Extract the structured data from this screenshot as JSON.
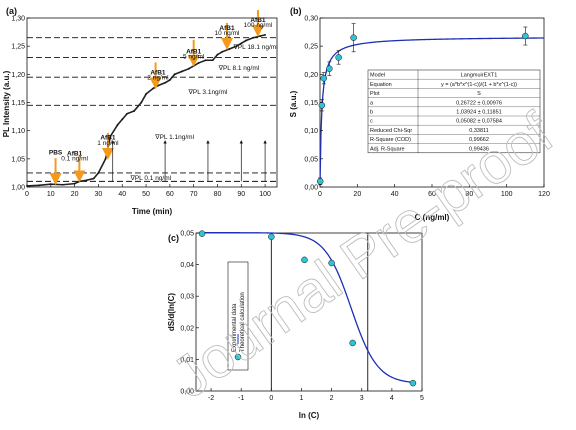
{
  "watermark": "Journal Pre-proof",
  "colors": {
    "marker_fill": "#2ec4d6",
    "fit_line": "#1f2fb5",
    "arrow": "#f39a1d",
    "data_line": "#222222"
  },
  "chart_data": [
    {
      "panel": "(a)",
      "type": "line",
      "xlabel": "Time (min)",
      "ylabel": "PL Intensity (a.u.)",
      "xlim": [
        0,
        105
      ],
      "ylim": [
        1.0,
        1.3
      ],
      "xticks": [
        "0",
        "10",
        "20",
        "30",
        "40",
        "50",
        "60",
        "70",
        "80",
        "90",
        "100"
      ],
      "yticks": [
        "1,00",
        "1,05",
        "1,10",
        "1,15",
        "1,20",
        "1,25",
        "1,30"
      ],
      "series": [
        {
          "x": [
            0,
            5,
            10,
            15,
            20,
            22,
            25,
            28,
            30,
            33,
            35,
            38,
            40,
            42,
            45,
            48,
            50,
            53,
            55,
            58,
            60,
            62,
            65,
            68,
            70,
            72,
            75,
            78,
            80,
            82,
            85,
            88,
            90,
            92,
            95,
            98,
            100
          ],
          "y": [
            1.002,
            1.003,
            1.005,
            1.004,
            1.006,
            1.01,
            1.012,
            1.015,
            1.025,
            1.05,
            1.09,
            1.11,
            1.12,
            1.13,
            1.135,
            1.15,
            1.165,
            1.175,
            1.18,
            1.185,
            1.19,
            1.2,
            1.205,
            1.21,
            1.215,
            1.22,
            1.225,
            1.225,
            1.235,
            1.24,
            1.245,
            1.25,
            1.255,
            1.26,
            1.265,
            1.268,
            1.27
          ]
        }
      ],
      "dashed_levels": [
        1.01,
        1.025,
        1.145,
        1.195,
        1.23,
        1.265
      ],
      "arrows_x": [
        12,
        22,
        34,
        54,
        70,
        84,
        97
      ],
      "vertical_arrows_x": [
        36,
        58,
        76,
        90,
        100
      ],
      "annotations": [
        {
          "label": "PBS",
          "x": 12,
          "y": 1.058
        },
        {
          "label": "AfB1",
          "x": 20,
          "y": 1.056
        },
        {
          "label": "0.1 ng/ml",
          "x": 20,
          "y": 1.047
        },
        {
          "label": "AfB1",
          "x": 34,
          "y": 1.084
        },
        {
          "label": "1 ng/ml",
          "x": 34,
          "y": 1.075
        },
        {
          "label": "AfB1",
          "x": 55,
          "y": 1.2
        },
        {
          "label": "2 ng/ml",
          "x": 55,
          "y": 1.191
        },
        {
          "label": "AfB1",
          "x": 70,
          "y": 1.237
        },
        {
          "label": "5 ng/ml",
          "x": 70,
          "y": 1.228
        },
        {
          "label": "AfB1",
          "x": 84,
          "y": 1.279
        },
        {
          "label": "10 ng/ml",
          "x": 84,
          "y": 1.27
        },
        {
          "label": "AfB1",
          "x": 97,
          "y": 1.293
        },
        {
          "label": "100 ng/ml",
          "x": 97,
          "y": 1.284
        },
        {
          "label": "∇PL  0.1 ng/ml",
          "x": 52,
          "y": 1.012
        },
        {
          "label": "∇PL 1.1ng/ml",
          "x": 62,
          "y": 1.085
        },
        {
          "label": "∇PL 3.1ng/ml",
          "x": 76,
          "y": 1.165
        },
        {
          "label": "∇PL 8.1 ng/ml",
          "x": 89,
          "y": 1.208
        },
        {
          "label": "∇PL 18.1 ng/ml",
          "x": 96,
          "y": 1.245
        }
      ]
    },
    {
      "panel": "(b)",
      "type": "scatter",
      "xlabel": "C (ng/ml)",
      "ylabel": "S (a.u.)",
      "xlim": [
        0,
        120
      ],
      "ylim": [
        0.0,
        0.3
      ],
      "xticks": [
        "0",
        "20",
        "40",
        "60",
        "80",
        "100",
        "120"
      ],
      "yticks": [
        "0,00",
        "0,05",
        "0,10",
        "0,15",
        "0,20",
        "0,25",
        "0,30"
      ],
      "points": [
        {
          "x": 0.1,
          "y": 0.01,
          "err": 0.006
        },
        {
          "x": 1,
          "y": 0.145,
          "err": 0.01
        },
        {
          "x": 2,
          "y": 0.193,
          "err": 0.01
        },
        {
          "x": 5,
          "y": 0.21,
          "err": 0.012
        },
        {
          "x": 10,
          "y": 0.23,
          "err": 0.012
        },
        {
          "x": 18,
          "y": 0.265,
          "err": 0.025
        },
        {
          "x": 110,
          "y": 0.268,
          "err": 0.016
        }
      ],
      "fit": {
        "a": 0.26722,
        "b": 1.03924,
        "c": 0.05082
      },
      "table": [
        [
          "Model",
          "LangmuirEXT1"
        ],
        [
          "Equation",
          "y = (a*b*x^(1-c))/(1 + b*x^(1-c))"
        ],
        [
          "Plot",
          "S"
        ],
        [
          "a",
          "0,26722 ± 0,00976"
        ],
        [
          "b",
          "1,03924 ± 0,11851"
        ],
        [
          "c",
          "0,05082 ± 0,07584"
        ],
        [
          "Reduced Chi-Sqr",
          "0,33811"
        ],
        [
          "R-Square (COD)",
          "0,99662"
        ],
        [
          "Adj. R-Square",
          "0,99436"
        ]
      ]
    },
    {
      "panel": "(c)",
      "type": "scatter",
      "xlabel": "ln (C)",
      "ylabel": "dS/d(ln(C)",
      "xlim": [
        -2.5,
        5
      ],
      "ylim": [
        0.0,
        0.05
      ],
      "xticks": [
        "-2",
        "-1",
        "0",
        "1",
        "2",
        "3",
        "4",
        "5"
      ],
      "yticks": [
        "0,00",
        "0,01",
        "0,02",
        "0,03",
        "0,04",
        "0,05"
      ],
      "points": [
        {
          "x": -2.3,
          "y": 0.0498
        },
        {
          "x": 0.0,
          "y": 0.0488
        },
        {
          "x": 1.1,
          "y": 0.0415
        },
        {
          "x": 2.0,
          "y": 0.0405
        },
        {
          "x": 2.7,
          "y": 0.0152
        },
        {
          "x": 4.7,
          "y": 0.0025
        }
      ],
      "vlines_x": [
        0,
        3.2
      ],
      "legend": [
        "Experimental data",
        "Theoretical calculation"
      ]
    }
  ]
}
